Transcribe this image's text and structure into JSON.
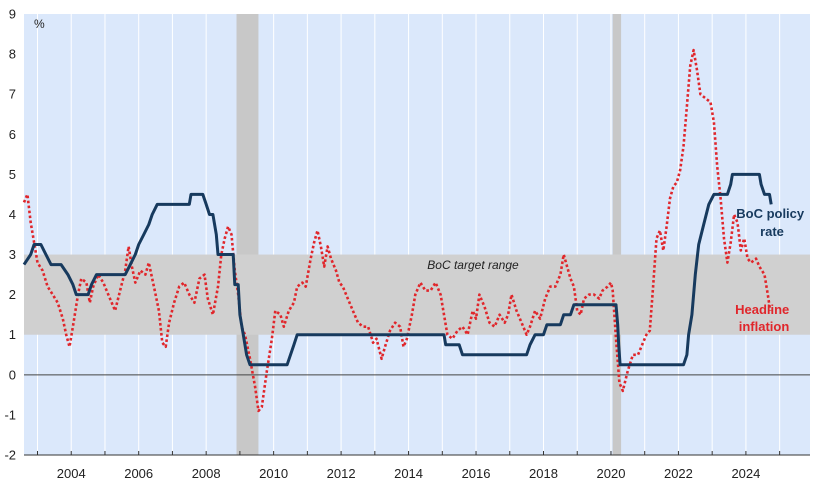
{
  "chart_data": {
    "type": "line",
    "unit_label": "%",
    "x_range": [
      2002.6,
      2025.9
    ],
    "ylim": [
      -2,
      9
    ],
    "y_ticks": [
      -2,
      -1,
      0,
      1,
      2,
      3,
      4,
      5,
      6,
      7,
      8,
      9
    ],
    "x_tick_labels": [
      {
        "year": 2004,
        "label": "2004"
      },
      {
        "year": 2006,
        "label": "2006"
      },
      {
        "year": 2008,
        "label": "2008"
      },
      {
        "year": 2010,
        "label": "2010"
      },
      {
        "year": 2012,
        "label": "2012"
      },
      {
        "year": 2014,
        "label": "2014"
      },
      {
        "year": 2016,
        "label": "2016"
      },
      {
        "year": 2018,
        "label": "2018"
      },
      {
        "year": 2020,
        "label": "2020"
      },
      {
        "year": 2022,
        "label": "2022"
      },
      {
        "year": 2024,
        "label": "2024"
      }
    ],
    "target_range": {
      "low": 1,
      "high": 3,
      "label": "BoC target range"
    },
    "recessions": [
      {
        "start": 2008.9,
        "end": 2009.55
      },
      {
        "start": 2020.05,
        "end": 2020.3
      }
    ],
    "colors": {
      "background": "#dbe8fb",
      "grid": "#ffffff",
      "target_band": "#d0d0d0",
      "recession": "#c8c8c8",
      "policy_rate": "#173a5e",
      "inflation": "#e0262b"
    },
    "series": [
      {
        "name": "BoC policy rate",
        "label_lines": [
          "BoC policy",
          "rate"
        ],
        "style": "solid",
        "points": [
          [
            2002.6,
            2.75
          ],
          [
            2002.8,
            3.0
          ],
          [
            2002.9,
            3.25
          ],
          [
            2003.1,
            3.25
          ],
          [
            2003.25,
            3.0
          ],
          [
            2003.4,
            2.75
          ],
          [
            2003.7,
            2.75
          ],
          [
            2003.9,
            2.5
          ],
          [
            2004.05,
            2.25
          ],
          [
            2004.15,
            2.0
          ],
          [
            2004.5,
            2.0
          ],
          [
            2004.6,
            2.25
          ],
          [
            2004.75,
            2.5
          ],
          [
            2005.6,
            2.5
          ],
          [
            2005.75,
            2.75
          ],
          [
            2005.9,
            3.0
          ],
          [
            2006.0,
            3.25
          ],
          [
            2006.15,
            3.5
          ],
          [
            2006.3,
            3.75
          ],
          [
            2006.4,
            4.0
          ],
          [
            2006.55,
            4.25
          ],
          [
            2007.5,
            4.25
          ],
          [
            2007.55,
            4.5
          ],
          [
            2007.9,
            4.5
          ],
          [
            2008.0,
            4.25
          ],
          [
            2008.1,
            4.0
          ],
          [
            2008.2,
            4.0
          ],
          [
            2008.3,
            3.5
          ],
          [
            2008.35,
            3.0
          ],
          [
            2008.8,
            3.0
          ],
          [
            2008.85,
            2.25
          ],
          [
            2008.95,
            2.25
          ],
          [
            2009.0,
            1.5
          ],
          [
            2009.1,
            1.0
          ],
          [
            2009.2,
            0.5
          ],
          [
            2009.3,
            0.25
          ],
          [
            2010.4,
            0.25
          ],
          [
            2010.5,
            0.5
          ],
          [
            2010.6,
            0.75
          ],
          [
            2010.7,
            1.0
          ],
          [
            2015.05,
            1.0
          ],
          [
            2015.1,
            0.75
          ],
          [
            2015.5,
            0.75
          ],
          [
            2015.6,
            0.5
          ],
          [
            2017.5,
            0.5
          ],
          [
            2017.6,
            0.75
          ],
          [
            2017.75,
            1.0
          ],
          [
            2018.0,
            1.0
          ],
          [
            2018.1,
            1.25
          ],
          [
            2018.5,
            1.25
          ],
          [
            2018.6,
            1.5
          ],
          [
            2018.8,
            1.5
          ],
          [
            2018.9,
            1.75
          ],
          [
            2020.15,
            1.75
          ],
          [
            2020.2,
            1.25
          ],
          [
            2020.23,
            0.75
          ],
          [
            2020.27,
            0.25
          ],
          [
            2022.15,
            0.25
          ],
          [
            2022.25,
            0.5
          ],
          [
            2022.3,
            1.0
          ],
          [
            2022.4,
            1.5
          ],
          [
            2022.5,
            2.5
          ],
          [
            2022.6,
            3.25
          ],
          [
            2022.75,
            3.75
          ],
          [
            2022.9,
            4.25
          ],
          [
            2023.05,
            4.5
          ],
          [
            2023.45,
            4.5
          ],
          [
            2023.55,
            4.75
          ],
          [
            2023.6,
            5.0
          ],
          [
            2024.4,
            5.0
          ],
          [
            2024.45,
            4.75
          ],
          [
            2024.55,
            4.5
          ],
          [
            2024.7,
            4.5
          ],
          [
            2024.75,
            4.25
          ]
        ]
      },
      {
        "name": "Headline inflation",
        "label_lines": [
          "Headline",
          "inflation"
        ],
        "style": "dotted",
        "points": [
          [
            2002.6,
            4.3
          ],
          [
            2002.7,
            4.5
          ],
          [
            2002.8,
            3.8
          ],
          [
            2002.9,
            3.3
          ],
          [
            2003.0,
            2.8
          ],
          [
            2003.15,
            2.6
          ],
          [
            2003.3,
            2.2
          ],
          [
            2003.45,
            2.0
          ],
          [
            2003.6,
            1.8
          ],
          [
            2003.75,
            1.4
          ],
          [
            2003.85,
            1.0
          ],
          [
            2003.95,
            0.7
          ],
          [
            2004.05,
            1.2
          ],
          [
            2004.2,
            2.0
          ],
          [
            2004.3,
            2.4
          ],
          [
            2004.45,
            2.3
          ],
          [
            2004.55,
            1.8
          ],
          [
            2004.65,
            2.2
          ],
          [
            2004.8,
            2.5
          ],
          [
            2004.95,
            2.3
          ],
          [
            2005.1,
            2.0
          ],
          [
            2005.3,
            1.6
          ],
          [
            2005.45,
            2.1
          ],
          [
            2005.6,
            2.6
          ],
          [
            2005.7,
            3.2
          ],
          [
            2005.8,
            2.7
          ],
          [
            2005.9,
            2.3
          ],
          [
            2006.05,
            2.6
          ],
          [
            2006.2,
            2.5
          ],
          [
            2006.3,
            2.8
          ],
          [
            2006.4,
            2.4
          ],
          [
            2006.5,
            2.0
          ],
          [
            2006.6,
            1.6
          ],
          [
            2006.7,
            0.8
          ],
          [
            2006.8,
            0.7
          ],
          [
            2006.9,
            1.3
          ],
          [
            2007.05,
            1.8
          ],
          [
            2007.2,
            2.2
          ],
          [
            2007.35,
            2.3
          ],
          [
            2007.5,
            2.0
          ],
          [
            2007.65,
            1.8
          ],
          [
            2007.8,
            2.4
          ],
          [
            2007.95,
            2.5
          ],
          [
            2008.05,
            1.9
          ],
          [
            2008.2,
            1.5
          ],
          [
            2008.35,
            2.2
          ],
          [
            2008.45,
            3.0
          ],
          [
            2008.55,
            3.4
          ],
          [
            2008.65,
            3.7
          ],
          [
            2008.75,
            3.5
          ],
          [
            2008.85,
            2.6
          ],
          [
            2008.95,
            2.0
          ],
          [
            2009.05,
            1.2
          ],
          [
            2009.15,
            1.0
          ],
          [
            2009.3,
            0.4
          ],
          [
            2009.45,
            -0.3
          ],
          [
            2009.55,
            -0.9
          ],
          [
            2009.65,
            -0.8
          ],
          [
            2009.8,
            0.1
          ],
          [
            2009.95,
            0.9
          ],
          [
            2010.05,
            1.6
          ],
          [
            2010.2,
            1.5
          ],
          [
            2010.3,
            1.2
          ],
          [
            2010.45,
            1.6
          ],
          [
            2010.6,
            1.8
          ],
          [
            2010.7,
            2.2
          ],
          [
            2010.85,
            2.3
          ],
          [
            2010.95,
            2.2
          ],
          [
            2011.1,
            2.9
          ],
          [
            2011.2,
            3.3
          ],
          [
            2011.3,
            3.6
          ],
          [
            2011.4,
            3.2
          ],
          [
            2011.5,
            2.7
          ],
          [
            2011.6,
            3.2
          ],
          [
            2011.7,
            2.9
          ],
          [
            2011.85,
            2.6
          ],
          [
            2011.95,
            2.3
          ],
          [
            2012.05,
            2.2
          ],
          [
            2012.2,
            1.9
          ],
          [
            2012.35,
            1.6
          ],
          [
            2012.5,
            1.3
          ],
          [
            2012.65,
            1.2
          ],
          [
            2012.8,
            1.2
          ],
          [
            2012.95,
            0.8
          ],
          [
            2013.05,
            0.9
          ],
          [
            2013.2,
            0.4
          ],
          [
            2013.3,
            0.7
          ],
          [
            2013.45,
            1.1
          ],
          [
            2013.6,
            1.3
          ],
          [
            2013.75,
            1.2
          ],
          [
            2013.85,
            0.7
          ],
          [
            2013.95,
            0.9
          ],
          [
            2014.1,
            1.5
          ],
          [
            2014.2,
            2.0
          ],
          [
            2014.35,
            2.3
          ],
          [
            2014.5,
            2.1
          ],
          [
            2014.65,
            2.1
          ],
          [
            2014.8,
            2.3
          ],
          [
            2014.95,
            2.0
          ],
          [
            2015.05,
            1.5
          ],
          [
            2015.15,
            1.0
          ],
          [
            2015.3,
            0.9
          ],
          [
            2015.45,
            1.1
          ],
          [
            2015.6,
            1.2
          ],
          [
            2015.75,
            1.0
          ],
          [
            2015.9,
            1.6
          ],
          [
            2016.0,
            1.4
          ],
          [
            2016.1,
            2.0
          ],
          [
            2016.25,
            1.7
          ],
          [
            2016.4,
            1.3
          ],
          [
            2016.55,
            1.2
          ],
          [
            2016.7,
            1.5
          ],
          [
            2016.85,
            1.3
          ],
          [
            2016.95,
            1.5
          ],
          [
            2017.05,
            2.0
          ],
          [
            2017.2,
            1.6
          ],
          [
            2017.35,
            1.3
          ],
          [
            2017.5,
            1.0
          ],
          [
            2017.6,
            1.2
          ],
          [
            2017.75,
            1.6
          ],
          [
            2017.9,
            1.4
          ],
          [
            2018.05,
            1.9
          ],
          [
            2018.2,
            2.2
          ],
          [
            2018.35,
            2.2
          ],
          [
            2018.5,
            2.5
          ],
          [
            2018.6,
            3.0
          ],
          [
            2018.7,
            2.7
          ],
          [
            2018.8,
            2.4
          ],
          [
            2018.9,
            2.2
          ],
          [
            2019.0,
            1.6
          ],
          [
            2019.1,
            1.5
          ],
          [
            2019.2,
            1.9
          ],
          [
            2019.35,
            2.0
          ],
          [
            2019.5,
            2.0
          ],
          [
            2019.65,
            1.9
          ],
          [
            2019.75,
            2.1
          ],
          [
            2019.9,
            2.2
          ],
          [
            2020.0,
            2.3
          ],
          [
            2020.05,
            2.1
          ],
          [
            2020.15,
            0.9
          ],
          [
            2020.25,
            -0.2
          ],
          [
            2020.35,
            -0.4
          ],
          [
            2020.5,
            0.1
          ],
          [
            2020.65,
            0.5
          ],
          [
            2020.8,
            0.5
          ],
          [
            2020.95,
            0.8
          ],
          [
            2021.05,
            1.0
          ],
          [
            2021.15,
            1.1
          ],
          [
            2021.25,
            2.2
          ],
          [
            2021.35,
            3.4
          ],
          [
            2021.45,
            3.6
          ],
          [
            2021.55,
            3.1
          ],
          [
            2021.65,
            3.7
          ],
          [
            2021.75,
            4.4
          ],
          [
            2021.85,
            4.7
          ],
          [
            2021.95,
            4.8
          ],
          [
            2022.05,
            5.1
          ],
          [
            2022.15,
            5.7
          ],
          [
            2022.25,
            6.7
          ],
          [
            2022.35,
            7.7
          ],
          [
            2022.45,
            8.1
          ],
          [
            2022.55,
            7.6
          ],
          [
            2022.65,
            7.0
          ],
          [
            2022.8,
            6.9
          ],
          [
            2022.95,
            6.8
          ],
          [
            2023.05,
            6.3
          ],
          [
            2023.15,
            5.2
          ],
          [
            2023.25,
            4.4
          ],
          [
            2023.35,
            3.4
          ],
          [
            2023.45,
            2.8
          ],
          [
            2023.55,
            3.3
          ],
          [
            2023.65,
            4.0
          ],
          [
            2023.75,
            3.8
          ],
          [
            2023.85,
            3.1
          ],
          [
            2023.95,
            3.4
          ],
          [
            2024.05,
            2.9
          ],
          [
            2024.15,
            2.8
          ],
          [
            2024.3,
            2.9
          ],
          [
            2024.4,
            2.7
          ],
          [
            2024.55,
            2.5
          ],
          [
            2024.65,
            2.0
          ],
          [
            2024.72,
            1.6
          ]
        ]
      }
    ]
  }
}
